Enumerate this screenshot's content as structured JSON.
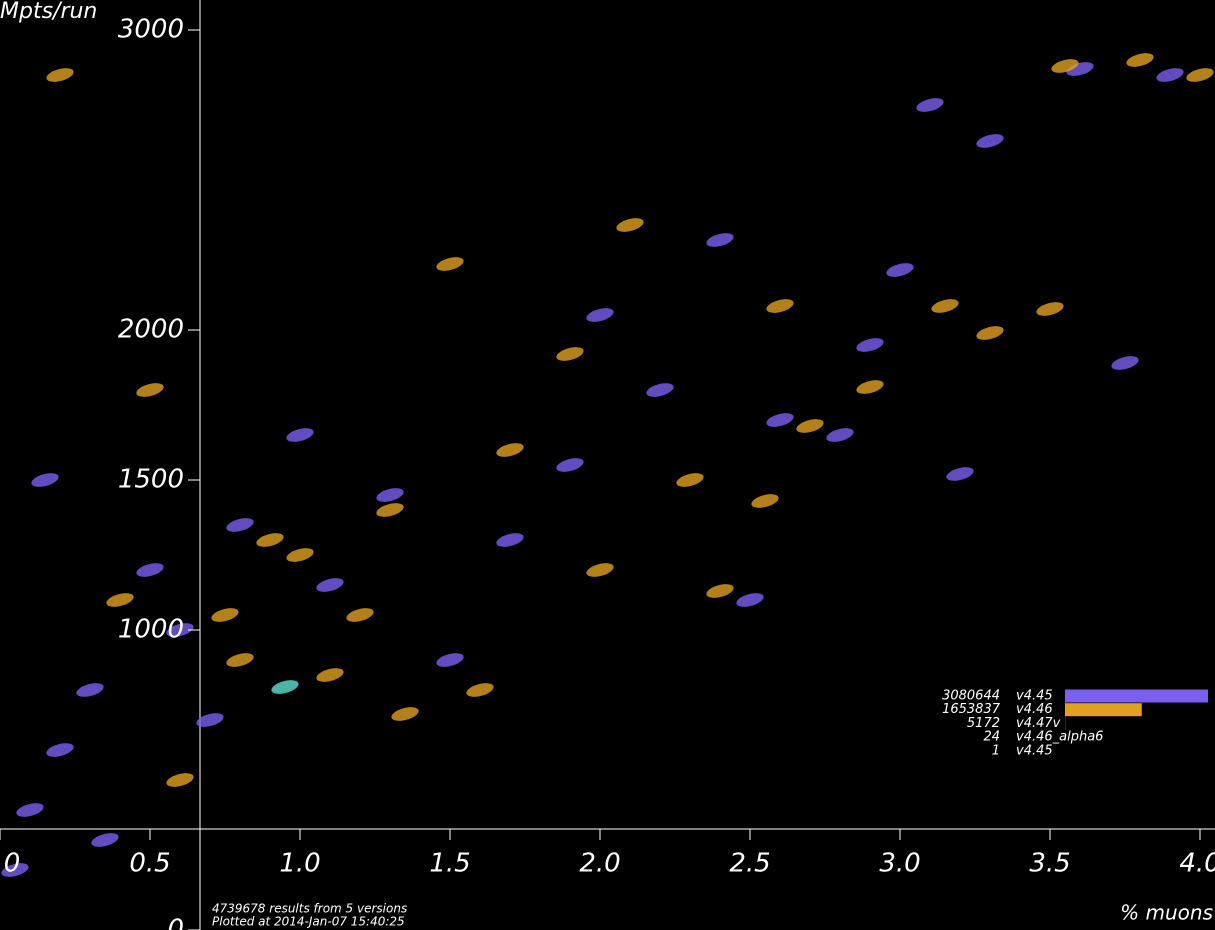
{
  "chart_data": {
    "type": "scatter",
    "y_label": "Mpts/run",
    "x_label": "% muons",
    "footer": [
      "4739678 results from 5 versions",
      "Plotted at 2014-Jan-07 15:40:25"
    ],
    "xlim": [
      0,
      4.05
    ],
    "ylim": [
      0,
      3100
    ],
    "xticks": [
      0,
      0.5,
      {
        "value": 1,
        "label": "1.0"
      },
      1.5,
      {
        "value": 2,
        "label": "2.0"
      },
      2.5,
      {
        "value": 3,
        "label": "3.0"
      },
      3.5,
      {
        "value": 4,
        "label": "4.0"
      }
    ],
    "yticks": [
      0,
      1000,
      1500,
      2000,
      3000
    ],
    "series": [
      {
        "name": "v4.45",
        "count": 3080644,
        "color": "#7b5ff0",
        "x": [
          3.9,
          3.3,
          3.1,
          3.6,
          3.75,
          3.2,
          2.6,
          2.4,
          0.2,
          0.1,
          0.3,
          0.5,
          0.35,
          0.6,
          0.8,
          1.0,
          1.3,
          1.7,
          2.0,
          2.2,
          2.8,
          2.5,
          1.5,
          1.1,
          0.15,
          0.05,
          0.7,
          1.9,
          2.9,
          3.0
        ],
        "y": [
          2850,
          2630,
          2750,
          2870,
          1890,
          1520,
          1700,
          2300,
          600,
          400,
          800,
          1200,
          300,
          1000,
          1350,
          1650,
          1450,
          1300,
          2050,
          1800,
          1650,
          1100,
          900,
          1150,
          1500,
          200,
          700,
          1550,
          1950,
          2200
        ]
      },
      {
        "name": "v4.46",
        "count": 1653837,
        "color": "#e0a020",
        "x": [
          4.0,
          3.8,
          3.5,
          1.5,
          3.3,
          3.15,
          2.9,
          2.7,
          2.55,
          2.0,
          1.7,
          1.3,
          1.0,
          0.8,
          1.6,
          1.35,
          0.6,
          2.3,
          1.9,
          2.4,
          0.2,
          0.5,
          0.9,
          1.2,
          3.55,
          2.1,
          0.75,
          2.6,
          1.1,
          0.4
        ],
        "y": [
          2850,
          2900,
          2070,
          2220,
          1990,
          2080,
          1810,
          1680,
          1430,
          1200,
          1600,
          1400,
          1250,
          900,
          800,
          720,
          500,
          1500,
          1920,
          1130,
          2850,
          1800,
          1300,
          1050,
          2880,
          2350,
          1050,
          2080,
          850,
          1100
        ]
      },
      {
        "name": "v4.47v",
        "count": 5172,
        "color": "#60e0d0",
        "x": [
          0.95
        ],
        "y": [
          810
        ]
      },
      {
        "name": "v4.46_alpha6",
        "count": 24,
        "color": "#ffffff",
        "x": [],
        "y": []
      },
      {
        "name": "v4.45",
        "count": 1,
        "color": "#ffffff",
        "x": [],
        "y": []
      }
    ]
  }
}
